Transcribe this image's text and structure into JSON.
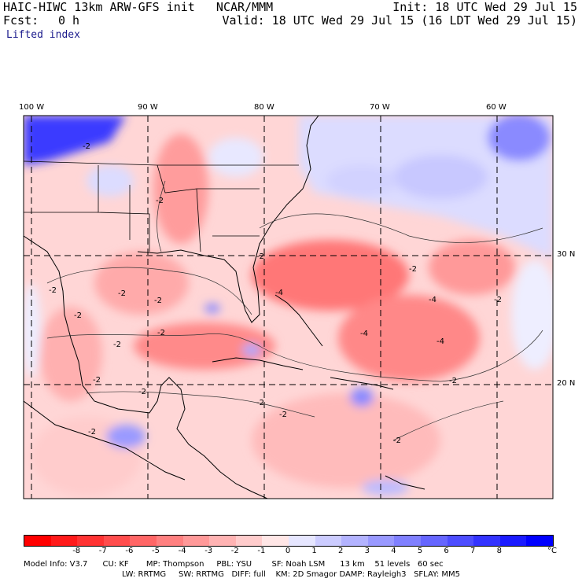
{
  "header": {
    "model_line": "HAIC-HIWC 13km ARW-GFS init   NCAR/MMM",
    "init_line": "Init: 18 UTC Wed 29 Jul 15",
    "fcst_label": "Fcst:",
    "fcst_value": "0 h",
    "valid_line": "Valid: 18 UTC Wed 29 Jul 15 (16 LDT Wed 29 Jul 15)",
    "field_name": "Lifted index"
  },
  "map": {
    "lon_labels": [
      "100 W",
      "90 W",
      "80 W",
      "70 W",
      "60 W"
    ],
    "lat_labels": [
      "30 N",
      "20 N"
    ],
    "contour_labels": [
      "-2",
      "-2",
      "-2",
      "-2",
      "-2",
      "-2",
      "-2",
      "-2",
      "-2",
      "-2",
      "-4",
      "-4",
      "-4",
      "-4",
      "-2",
      "-2",
      "-2",
      "-2",
      "-2",
      "-2",
      "-2",
      "-2"
    ]
  },
  "colorbar": {
    "ticks": [
      "-8",
      "-7",
      "-6",
      "-5",
      "-4",
      "-3",
      "-2",
      "-1",
      "0",
      "1",
      "2",
      "3",
      "4",
      "5",
      "6",
      "7",
      "8"
    ],
    "unit": "°C",
    "colors": [
      "#ff0000",
      "#ff1a1a",
      "#ff3333",
      "#ff4d4d",
      "#ff6666",
      "#ff8080",
      "#ff9999",
      "#ffb3b3",
      "#ffcccc",
      "#ffe6e6",
      "#e6e6ff",
      "#ccccff",
      "#b3b3ff",
      "#9999ff",
      "#8080ff",
      "#6666ff",
      "#4d4dff",
      "#3333ff",
      "#1a1aff",
      "#0000ff"
    ]
  },
  "footer": {
    "line1": "Model Info: V3.7      CU: KF       MP: Thompson     PBL: YSU        SF: Noah LSM      13 km    51 levels   60 sec",
    "line2": "LW: RRTMG     SW: RRTMG   DIFF: full    KM: 2D Smagor DAMP: Rayleigh3   SFLAY: MM5"
  }
}
